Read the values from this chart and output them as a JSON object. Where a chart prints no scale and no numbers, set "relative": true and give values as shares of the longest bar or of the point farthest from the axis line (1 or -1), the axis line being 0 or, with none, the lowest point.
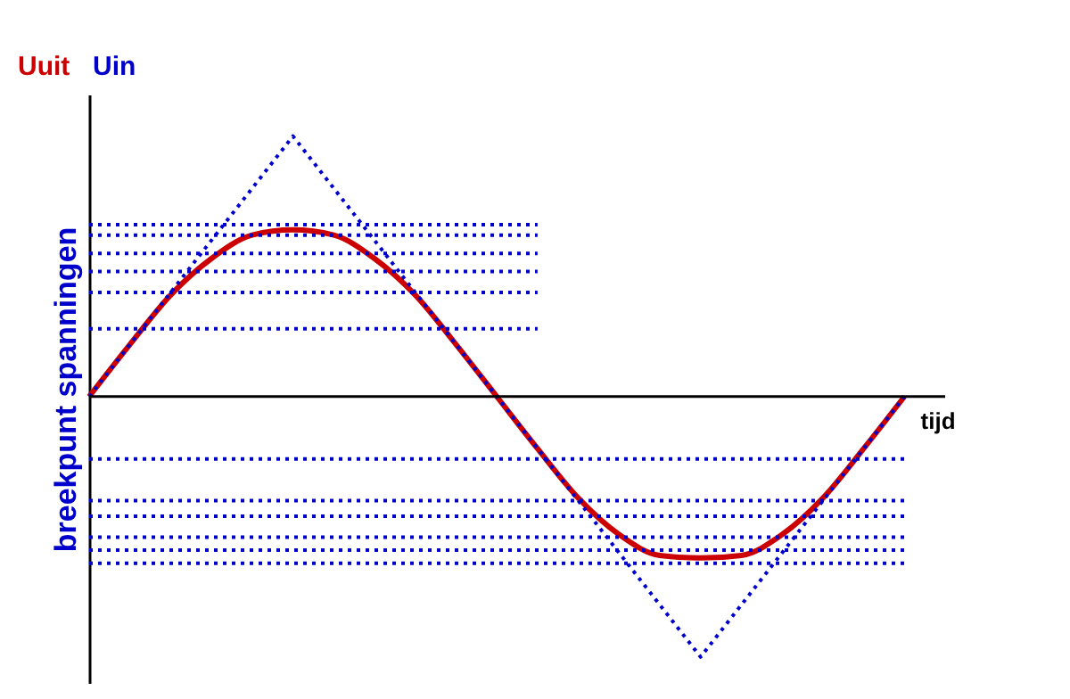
{
  "chart_data": {
    "type": "line",
    "relative": true,
    "xlabel": "tijd",
    "ylabel": "breekpunt spanningen",
    "legend": "top left",
    "grid": false,
    "categories": [
      null,
      null,
      null,
      null,
      null,
      null,
      null,
      null,
      null,
      null,
      null,
      null,
      null,
      null,
      null,
      null,
      null,
      null,
      null,
      null,
      null
    ],
    "series": [
      {
        "name": "Uuit",
        "color": "#cc0000",
        "line_style": "solid",
        "values": [
          0,
          0.2,
          0.39,
          0.53,
          0.62,
          0.64,
          0.62,
          0.53,
          0.39,
          0.2,
          0,
          -0.2,
          -0.39,
          -0.53,
          -0.61,
          -0.62,
          -0.61,
          -0.53,
          -0.39,
          -0.2,
          0
        ]
      },
      {
        "name": "Uin",
        "color": "#0000cc",
        "line_style": "dotted",
        "values": [
          0,
          0.2,
          0.4,
          0.6,
          0.8,
          1,
          0.8,
          0.6,
          0.4,
          0.2,
          0,
          -0.2,
          -0.4,
          -0.6,
          -0.8,
          -1,
          -0.8,
          -0.6,
          -0.4,
          -0.2,
          0
        ]
      },
      {
        "color": "#0000cc",
        "line_style": "dotted",
        "values": [
          0.66,
          0.66,
          0.66,
          0.66,
          0.66,
          0.66,
          0.66,
          0.66,
          0.66,
          0.66,
          0.66,
          0.66,
          null,
          null,
          null,
          null,
          null,
          null,
          null,
          null,
          null
        ]
      },
      {
        "color": "#0000cc",
        "line_style": "dotted",
        "values": [
          0.62,
          0.62,
          0.62,
          0.62,
          0.62,
          0.62,
          0.62,
          0.62,
          0.62,
          0.62,
          0.62,
          0.62,
          null,
          null,
          null,
          null,
          null,
          null,
          null,
          null,
          null
        ]
      },
      {
        "color": "#0000cc",
        "line_style": "dotted",
        "values": [
          0.55,
          0.55,
          0.55,
          0.55,
          0.55,
          0.55,
          0.55,
          0.55,
          0.55,
          0.55,
          0.55,
          0.55,
          null,
          null,
          null,
          null,
          null,
          null,
          null,
          null,
          null
        ]
      },
      {
        "color": "#0000cc",
        "line_style": "dotted",
        "values": [
          0.48,
          0.48,
          0.48,
          0.48,
          0.48,
          0.48,
          0.48,
          0.48,
          0.48,
          0.48,
          0.48,
          0.48,
          null,
          null,
          null,
          null,
          null,
          null,
          null,
          null,
          null
        ]
      },
      {
        "color": "#0000cc",
        "line_style": "dotted",
        "values": [
          0.4,
          0.4,
          0.4,
          0.4,
          0.4,
          0.4,
          0.4,
          0.4,
          0.4,
          0.4,
          0.4,
          0.4,
          null,
          null,
          null,
          null,
          null,
          null,
          null,
          null,
          null
        ]
      },
      {
        "color": "#0000cc",
        "line_style": "dotted",
        "values": [
          0.26,
          0.26,
          0.26,
          0.26,
          0.26,
          0.26,
          0.26,
          0.26,
          0.26,
          0.26,
          0.26,
          0.26,
          null,
          null,
          null,
          null,
          null,
          null,
          null,
          null,
          null
        ]
      },
      {
        "color": "#0000cc",
        "line_style": "dotted",
        "values": [
          -0.24,
          -0.24,
          -0.24,
          -0.24,
          -0.24,
          -0.24,
          -0.24,
          -0.24,
          -0.24,
          -0.24,
          -0.24,
          -0.24,
          -0.24,
          -0.24,
          -0.24,
          -0.24,
          -0.24,
          -0.24,
          -0.24,
          -0.24,
          -0.24
        ]
      },
      {
        "color": "#0000cc",
        "line_style": "dotted",
        "values": [
          -0.4,
          -0.4,
          -0.4,
          -0.4,
          -0.4,
          -0.4,
          -0.4,
          -0.4,
          -0.4,
          -0.4,
          -0.4,
          -0.4,
          -0.4,
          -0.4,
          -0.4,
          -0.4,
          -0.4,
          -0.4,
          -0.4,
          -0.4,
          -0.4
        ]
      },
      {
        "color": "#0000cc",
        "line_style": "dotted",
        "values": [
          -0.46,
          -0.46,
          -0.46,
          -0.46,
          -0.46,
          -0.46,
          -0.46,
          -0.46,
          -0.46,
          -0.46,
          -0.46,
          -0.46,
          -0.46,
          -0.46,
          -0.46,
          -0.46,
          -0.46,
          -0.46,
          -0.46,
          -0.46,
          -0.46
        ]
      },
      {
        "color": "#0000cc",
        "line_style": "dotted",
        "values": [
          -0.54,
          -0.54,
          -0.54,
          -0.54,
          -0.54,
          -0.54,
          -0.54,
          -0.54,
          -0.54,
          -0.54,
          -0.54,
          -0.54,
          -0.54,
          -0.54,
          -0.54,
          -0.54,
          -0.54,
          -0.54,
          -0.54,
          -0.54,
          -0.54
        ]
      },
      {
        "color": "#0000cc",
        "line_style": "dotted",
        "values": [
          -0.59,
          -0.59,
          -0.59,
          -0.59,
          -0.59,
          -0.59,
          -0.59,
          -0.59,
          -0.59,
          -0.59,
          -0.59,
          -0.59,
          -0.59,
          -0.59,
          -0.59,
          -0.59,
          -0.59,
          -0.59,
          -0.59,
          -0.59,
          -0.59
        ]
      },
      {
        "color": "#0000cc",
        "line_style": "dotted",
        "values": [
          -0.64,
          -0.64,
          -0.64,
          -0.64,
          -0.64,
          -0.64,
          -0.64,
          -0.64,
          -0.64,
          -0.64,
          -0.64,
          -0.64,
          -0.64,
          -0.64,
          -0.64,
          -0.64,
          -0.64,
          -0.64,
          -0.64,
          -0.64,
          -0.64
        ]
      }
    ]
  }
}
